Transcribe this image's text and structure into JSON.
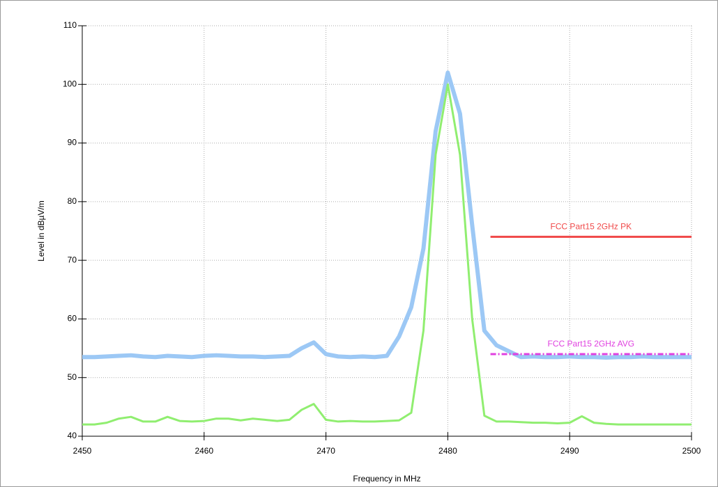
{
  "chart_data": {
    "type": "line",
    "y_label": "Level in dBµV/m",
    "x_label": "Frequency in MHz",
    "xlim": [
      2450,
      2500
    ],
    "xticks": [
      2450,
      2460,
      2470,
      2480,
      2490,
      2500
    ],
    "ylim": [
      40,
      110
    ],
    "yticks": [
      40,
      50,
      60,
      70,
      80,
      90,
      100,
      110
    ],
    "grid": true,
    "x": [
      2450,
      2451,
      2452,
      2453,
      2454,
      2455,
      2456,
      2457,
      2458,
      2459,
      2460,
      2461,
      2462,
      2463,
      2464,
      2465,
      2466,
      2467,
      2468,
      2469,
      2470,
      2471,
      2472,
      2473,
      2474,
      2475,
      2476,
      2477,
      2478,
      2479,
      2480,
      2481,
      2482,
      2483,
      2484,
      2485,
      2486,
      2487,
      2488,
      2489,
      2490,
      2491,
      2492,
      2493,
      2494,
      2495,
      2496,
      2497,
      2498,
      2499,
      2500
    ],
    "series": [
      {
        "color": "#9cc8f5",
        "width": 6,
        "values": [
          53.5,
          53.5,
          53.6,
          53.7,
          53.8,
          53.6,
          53.5,
          53.7,
          53.6,
          53.5,
          53.7,
          53.8,
          53.7,
          53.6,
          53.6,
          53.5,
          53.6,
          53.7,
          55,
          56,
          54,
          53.6,
          53.5,
          53.6,
          53.5,
          53.7,
          57,
          62,
          72,
          92,
          102,
          95,
          76,
          58,
          55.5,
          54.5,
          53.5,
          53.6,
          53.5,
          53.5,
          53.6,
          53.5,
          53.5,
          53.4,
          53.5,
          53.5,
          53.6,
          53.5,
          53.5,
          53.5,
          53.5
        ]
      },
      {
        "color": "#90ee70",
        "width": 3,
        "values": [
          42,
          42,
          42.3,
          43,
          43.3,
          42.5,
          42.5,
          43.3,
          42.6,
          42.5,
          42.6,
          43,
          43,
          42.7,
          43,
          42.8,
          42.6,
          42.8,
          44.5,
          45.5,
          42.8,
          42.5,
          42.6,
          42.5,
          42.5,
          42.6,
          42.7,
          44,
          58,
          88,
          100,
          88,
          60,
          43.5,
          42.5,
          42.5,
          42.4,
          42.3,
          42.3,
          42.2,
          42.3,
          43.4,
          42.3,
          42.1,
          42,
          42,
          42,
          42,
          42,
          42,
          42
        ]
      }
    ],
    "limits": [
      {
        "name": "FCC Part15 2GHz PK",
        "color": "#f04848",
        "dashed": false,
        "x": [
          2483.5,
          2500
        ],
        "values": [
          74,
          74
        ]
      },
      {
        "name": "FCC Part15 2GHz AVG",
        "color": "#e040e0",
        "dashed": true,
        "x": [
          2483.5,
          2500
        ],
        "values": [
          54,
          54
        ]
      }
    ]
  }
}
